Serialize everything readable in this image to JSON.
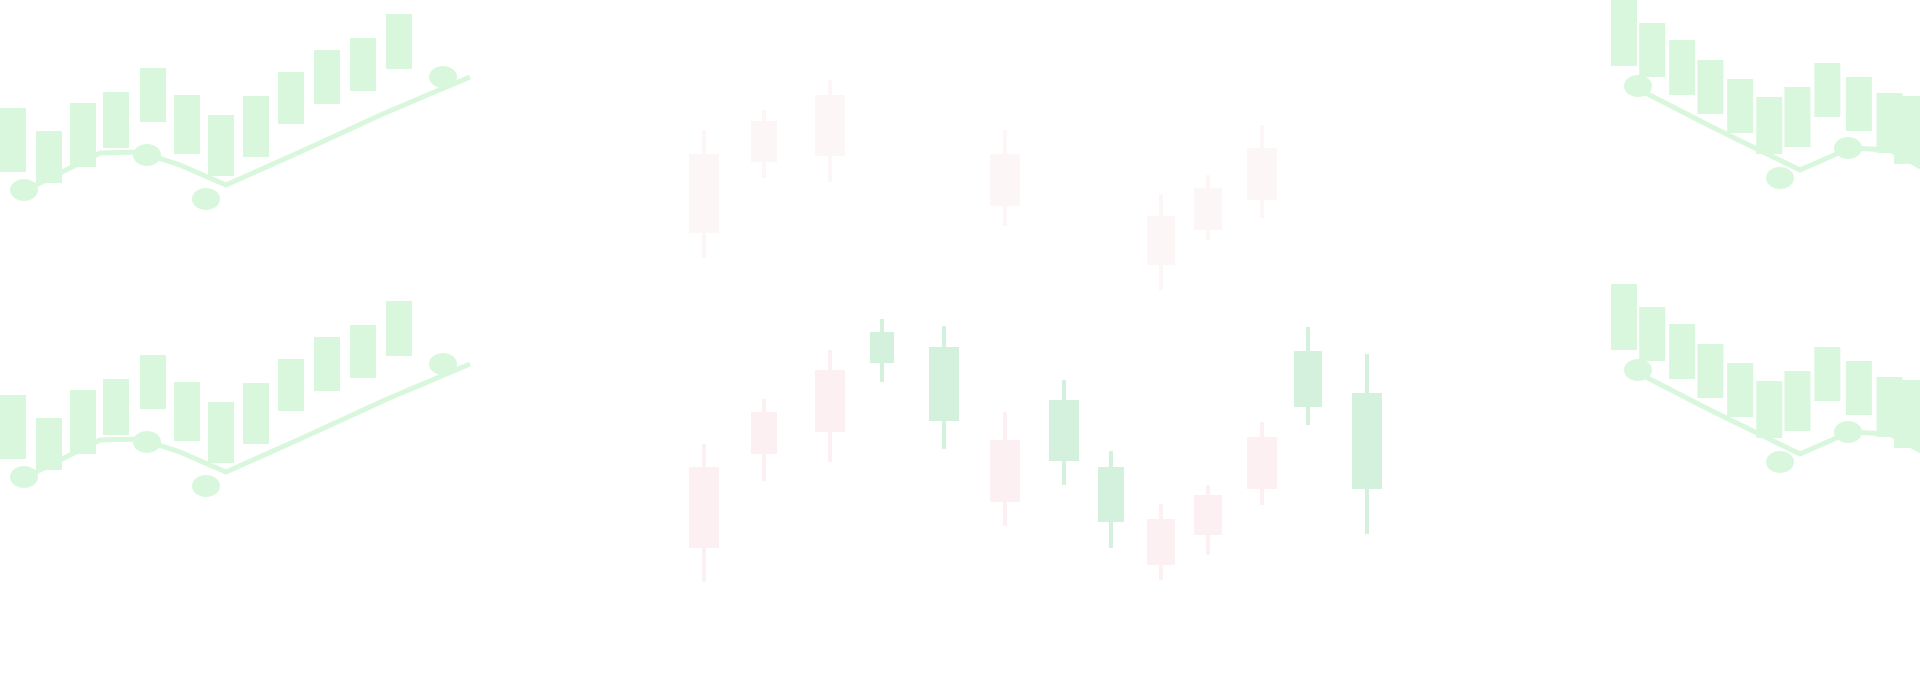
{
  "palette": {
    "green_fill": "#d9f7dc",
    "green_line": "#d9f7dc",
    "candle_up": "#d3f1dc",
    "candle_down": "#fdf0f2",
    "candle_faint": "#fdf6f6",
    "background": "#ffffff"
  },
  "motifs": [
    {
      "id": "bars-top-left",
      "kind": "bar-with-trend-line"
    },
    {
      "id": "bars-bottom-left",
      "kind": "bar-with-trend-line"
    },
    {
      "id": "bars-top-right",
      "kind": "bar-with-trend-line",
      "mirrored": true
    },
    {
      "id": "bars-bottom-right",
      "kind": "bar-with-trend-line",
      "mirrored": true
    },
    {
      "id": "candles-top-center",
      "kind": "candlestick-pattern",
      "faded": true
    },
    {
      "id": "candles-bottom-center",
      "kind": "candlestick-pattern"
    }
  ]
}
